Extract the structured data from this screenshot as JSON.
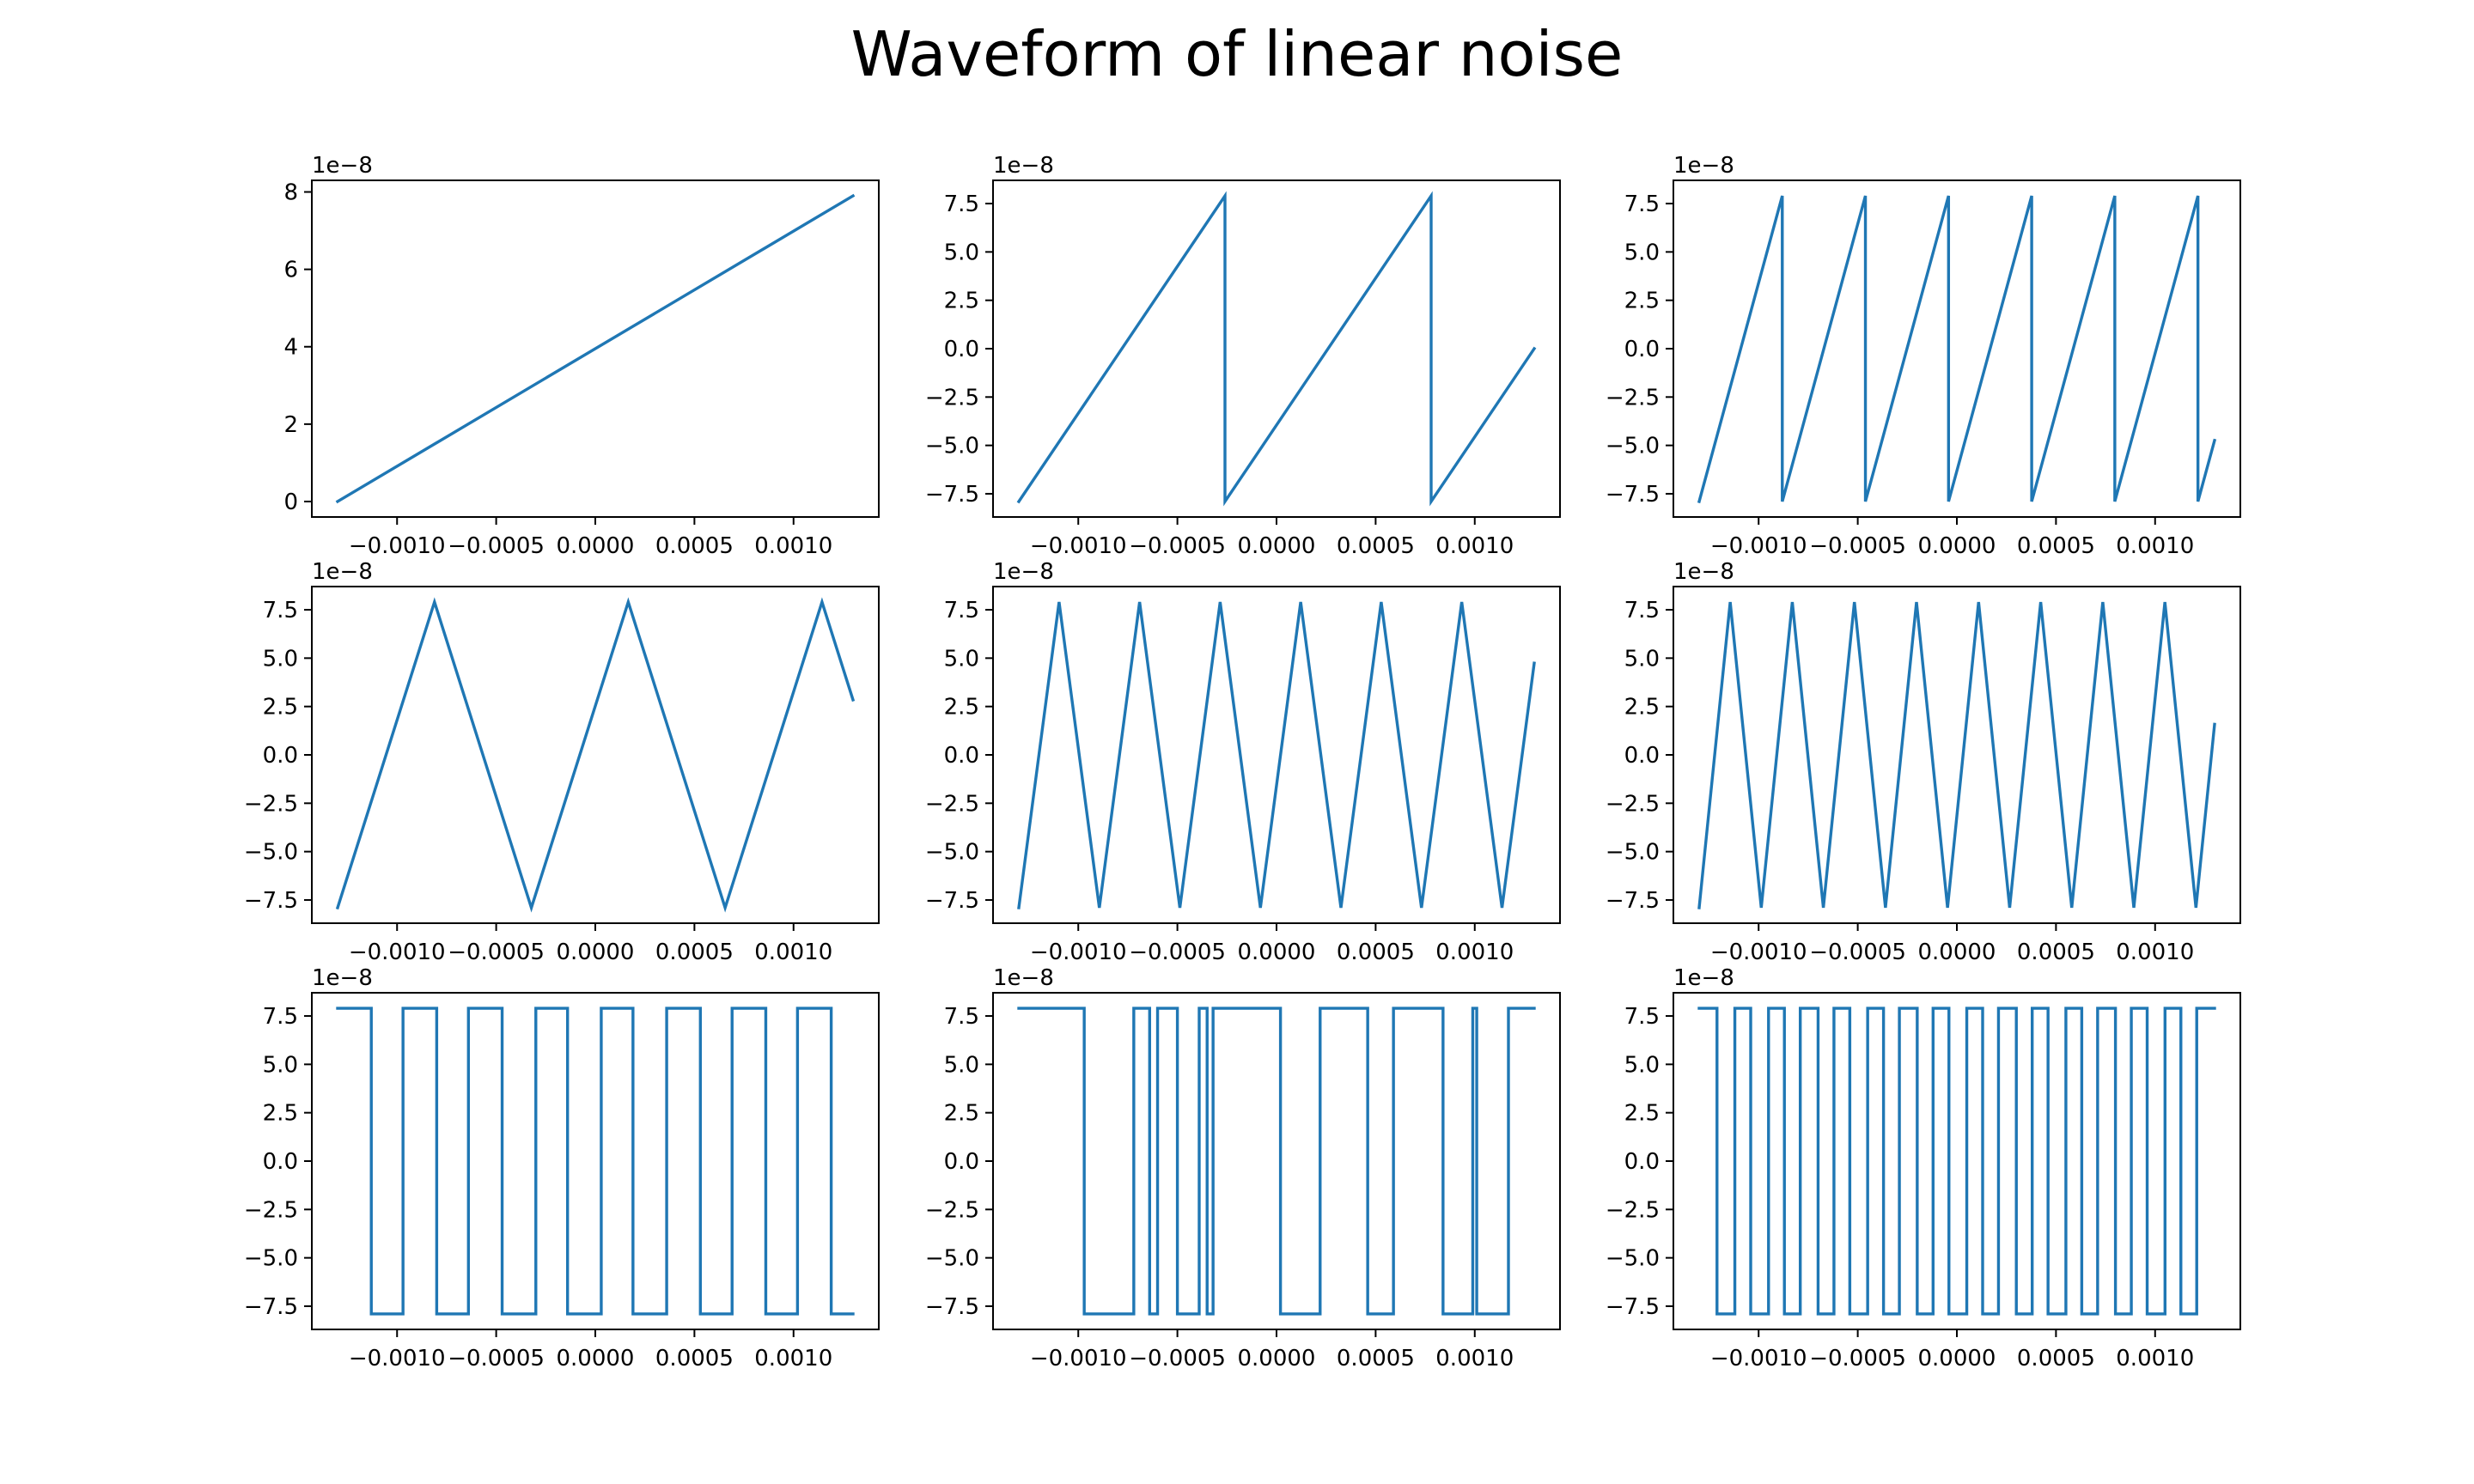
{
  "figure": {
    "title": "Waveform of linear noise",
    "line_color": "#1f77b4"
  },
  "chart_data": [
    {
      "type": "line",
      "waveform": "sawtooth",
      "cycles": 0.5,
      "phase": 0.0,
      "x": [
        -0.0013,
        0.0013
      ],
      "xlim": [
        -0.00143,
        0.00143
      ],
      "ylim": [
        -0.4,
        8.3
      ],
      "yticks": [
        0,
        2,
        4,
        6,
        8
      ],
      "ytick_labels": [
        "0",
        "2",
        "4",
        "6",
        "8"
      ],
      "offset_text": "1e−8",
      "y_amplitude_note": "values scaled by 1e-8",
      "xticks": [
        -0.001,
        -0.0005,
        0,
        0.0005,
        0.001
      ],
      "xtick_labels": [
        "−0.0010",
        "−0.0005",
        "0.0000",
        "0.0005",
        "0.0010"
      ],
      "y_formula": "linear 0 to 7.9"
    },
    {
      "type": "line",
      "waveform": "sawtooth",
      "cycles": 2.5,
      "x": [
        -0.0013,
        0.0013
      ],
      "xlim": [
        -0.00143,
        0.00143
      ],
      "ylim": [
        -8.7,
        8.7
      ],
      "yticks": [
        -7.5,
        -5.0,
        -2.5,
        0.0,
        2.5,
        5.0,
        7.5
      ],
      "ytick_labels": [
        "−7.5",
        "−5.0",
        "−2.5",
        "0.0",
        "2.5",
        "5.0",
        "7.5"
      ],
      "offset_text": "1e−8",
      "xticks": [
        -0.001,
        -0.0005,
        0,
        0.0005,
        0.001
      ],
      "xtick_labels": [
        "−0.0010",
        "−0.0005",
        "0.0000",
        "0.0005",
        "0.0010"
      ]
    },
    {
      "type": "line",
      "waveform": "sawtooth",
      "cycles": 6.2,
      "x": [
        -0.0013,
        0.0013
      ],
      "xlim": [
        -0.00143,
        0.00143
      ],
      "ylim": [
        -8.7,
        8.7
      ],
      "yticks": [
        -7.5,
        -5.0,
        -2.5,
        0.0,
        2.5,
        5.0,
        7.5
      ],
      "ytick_labels": [
        "−7.5",
        "−5.0",
        "−2.5",
        "0.0",
        "2.5",
        "5.0",
        "7.5"
      ],
      "offset_text": "1e−8",
      "xticks": [
        -0.001,
        -0.0005,
        0,
        0.0005,
        0.001
      ],
      "xtick_labels": [
        "−0.0010",
        "−0.0005",
        "0.0000",
        "0.0005",
        "0.0010"
      ]
    },
    {
      "type": "line",
      "waveform": "triangle",
      "cycles": 2.66,
      "x": [
        -0.0013,
        0.0013
      ],
      "xlim": [
        -0.00143,
        0.00143
      ],
      "ylim": [
        -8.7,
        8.7
      ],
      "yticks": [
        -7.5,
        -5.0,
        -2.5,
        0.0,
        2.5,
        5.0,
        7.5
      ],
      "ytick_labels": [
        "−7.5",
        "−5.0",
        "−2.5",
        "0.0",
        "2.5",
        "5.0",
        "7.5"
      ],
      "offset_text": "1e−8",
      "xticks": [
        -0.001,
        -0.0005,
        0,
        0.0005,
        0.001
      ],
      "xtick_labels": [
        "−0.0010",
        "−0.0005",
        "0.0000",
        "0.0005",
        "0.0010"
      ]
    },
    {
      "type": "line",
      "waveform": "triangle",
      "cycles": 6.4,
      "x": [
        -0.0013,
        0.0013
      ],
      "xlim": [
        -0.00143,
        0.00143
      ],
      "ylim": [
        -8.7,
        8.7
      ],
      "yticks": [
        -7.5,
        -5.0,
        -2.5,
        0.0,
        2.5,
        5.0,
        7.5
      ],
      "ytick_labels": [
        "−7.5",
        "−5.0",
        "−2.5",
        "0.0",
        "2.5",
        "5.0",
        "7.5"
      ],
      "offset_text": "1e−8",
      "xticks": [
        -0.001,
        -0.0005,
        0,
        0.0005,
        0.001
      ],
      "xtick_labels": [
        "−0.0010",
        "−0.0005",
        "0.0000",
        "0.0005",
        "0.0010"
      ]
    },
    {
      "type": "line",
      "waveform": "triangle",
      "cycles": 8.3,
      "x": [
        -0.0013,
        0.0013
      ],
      "xlim": [
        -0.00143,
        0.00143
      ],
      "ylim": [
        -8.7,
        8.7
      ],
      "yticks": [
        -7.5,
        -5.0,
        -2.5,
        0.0,
        2.5,
        5.0,
        7.5
      ],
      "ytick_labels": [
        "−7.5",
        "−5.0",
        "−2.5",
        "0.0",
        "2.5",
        "5.0",
        "7.5"
      ],
      "offset_text": "1e−8",
      "xticks": [
        -0.001,
        -0.0005,
        0,
        0.0005,
        0.001
      ],
      "xtick_labels": [
        "−0.0010",
        "−0.0005",
        "0.0000",
        "0.0005",
        "0.0010"
      ]
    },
    {
      "type": "line",
      "waveform": "square",
      "transitions": [
        -0.00113,
        -0.00097,
        -0.0008,
        -0.00064,
        -0.00047,
        -0.0003,
        -0.00014,
        3e-05,
        0.00019,
        0.00036,
        0.00053,
        0.00069,
        0.00086,
        0.00102,
        0.00119
      ],
      "start_level": 7.9,
      "x": [
        -0.0013,
        0.0013
      ],
      "xlim": [
        -0.00143,
        0.00143
      ],
      "ylim": [
        -8.7,
        8.7
      ],
      "yticks": [
        -7.5,
        -5.0,
        -2.5,
        0.0,
        2.5,
        5.0,
        7.5
      ],
      "ytick_labels": [
        "−7.5",
        "−5.0",
        "−2.5",
        "0.0",
        "2.5",
        "5.0",
        "7.5"
      ],
      "offset_text": "1e−8",
      "xticks": [
        -0.001,
        -0.0005,
        0,
        0.0005,
        0.001
      ],
      "xtick_labels": [
        "−0.0010",
        "−0.0005",
        "0.0000",
        "0.0005",
        "0.0010"
      ]
    },
    {
      "type": "line",
      "waveform": "square",
      "transitions": [
        -0.00097,
        -0.00072,
        -0.00064,
        -0.0006,
        -0.0005,
        -0.00039,
        -0.00035,
        -0.00032,
        2e-05,
        0.00022,
        0.00046,
        0.00059,
        0.00084,
        0.00099,
        0.00101,
        0.00117
      ],
      "start_level": 7.9,
      "x": [
        -0.0013,
        0.0013
      ],
      "xlim": [
        -0.00143,
        0.00143
      ],
      "ylim": [
        -8.7,
        8.7
      ],
      "yticks": [
        -7.5,
        -5.0,
        -2.5,
        0.0,
        2.5,
        5.0,
        7.5
      ],
      "ytick_labels": [
        "−7.5",
        "−5.0",
        "−2.5",
        "0.0",
        "2.5",
        "5.0",
        "7.5"
      ],
      "offset_text": "1e−8",
      "xticks": [
        -0.001,
        -0.0005,
        0,
        0.0005,
        0.001
      ],
      "xtick_labels": [
        "−0.0010",
        "−0.0005",
        "0.0000",
        "0.0005",
        "0.0010"
      ]
    },
    {
      "type": "line",
      "waveform": "square",
      "transitions": [
        -0.00121,
        -0.00112,
        -0.00104,
        -0.00095,
        -0.00087,
        -0.00079,
        -0.0007,
        -0.00062,
        -0.00054,
        -0.00045,
        -0.00037,
        -0.00029,
        -0.0002,
        -0.00012,
        -4e-05,
        5e-05,
        0.00013,
        0.00021,
        0.0003,
        0.00038,
        0.00046,
        0.00055,
        0.00063,
        0.00071,
        0.0008,
        0.00088,
        0.00096,
        0.00105,
        0.00113,
        0.00121
      ],
      "start_level": 7.9,
      "x": [
        -0.0013,
        0.0013
      ],
      "xlim": [
        -0.00143,
        0.00143
      ],
      "ylim": [
        -8.7,
        8.7
      ],
      "yticks": [
        -7.5,
        -5.0,
        -2.5,
        0.0,
        2.5,
        5.0,
        7.5
      ],
      "ytick_labels": [
        "−7.5",
        "−5.0",
        "−2.5",
        "0.0",
        "2.5",
        "5.0",
        "7.5"
      ],
      "offset_text": "1e−8",
      "xticks": [
        -0.001,
        -0.0005,
        0,
        0.0005,
        0.001
      ],
      "xtick_labels": [
        "−0.0010",
        "−0.0005",
        "0.0000",
        "0.0005",
        "0.0010"
      ]
    }
  ]
}
